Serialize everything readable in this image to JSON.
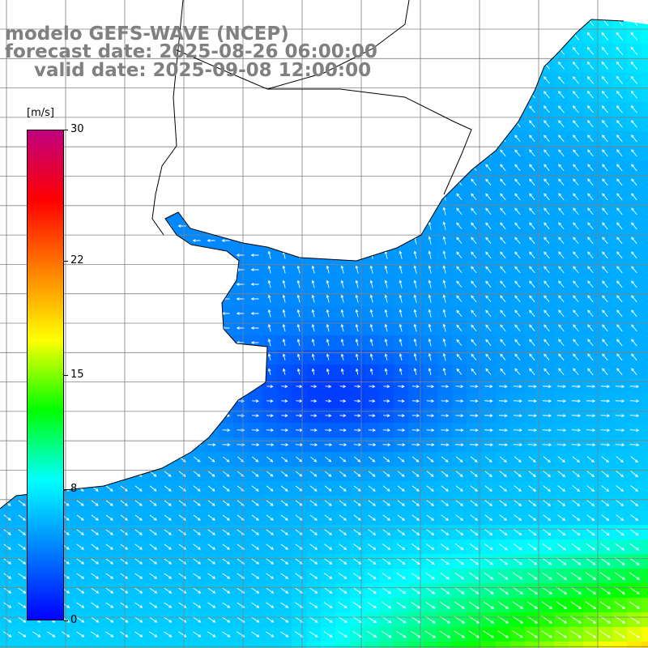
{
  "title": {
    "line1": "modelo GEFS-WAVE (NCEP)",
    "line2": "forecast date: 2025-08-26 06:00:00",
    "line3": "valid date: 2025-09-08 12:00:00"
  },
  "colorbar": {
    "unit": "[m/s]",
    "min": 0,
    "max": 30,
    "ticks": [
      {
        "label": "30",
        "value": 30
      },
      {
        "label": "22",
        "value": 22
      },
      {
        "label": "15",
        "value": 15
      },
      {
        "label": "8",
        "value": 8
      },
      {
        "label": "0",
        "value": 0
      }
    ],
    "stops": [
      "#0000ff",
      "#0080ff",
      "#00ffff",
      "#00ff00",
      "#ffff00",
      "#ff8000",
      "#ff0000",
      "#c00080"
    ]
  },
  "map": {
    "colors": {
      "land": "#ffffff",
      "coast": "#000000",
      "grid": "#808080",
      "arrow": "#ffffff"
    }
  }
}
